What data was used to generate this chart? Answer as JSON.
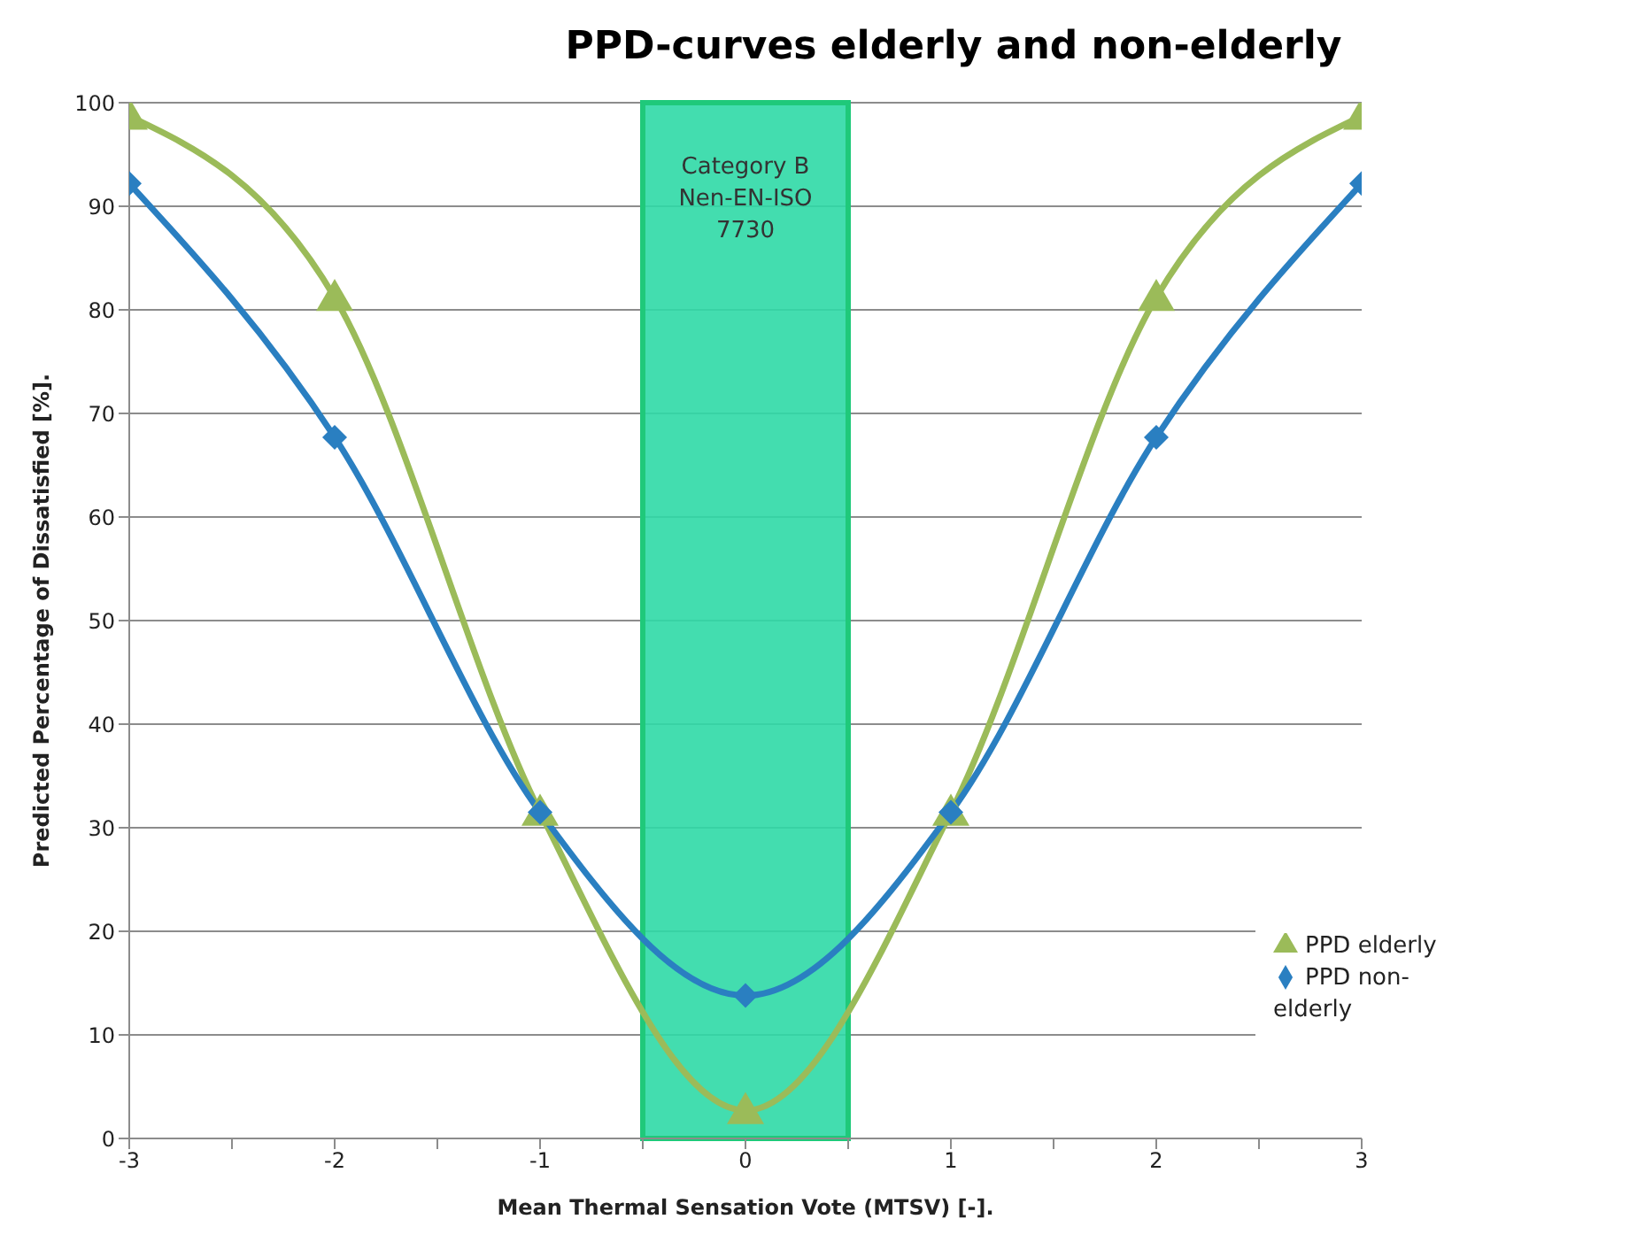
{
  "chart_data": {
    "type": "line",
    "title": "PPD-curves elderly and non-elderly",
    "xlabel": "Mean Thermal Sensation Vote (MTSV)  [-].",
    "ylabel": "Predicted Percentage of Dissatisfied  [%].",
    "x": [
      -3,
      -2,
      -1,
      0,
      1,
      2,
      3
    ],
    "series": [
      {
        "name": "PPD elderly",
        "color": "#9bbb59",
        "marker": "triangle",
        "values": [
          98.7,
          81.2,
          31.5,
          2.7,
          31.5,
          81.2,
          98.7
        ]
      },
      {
        "name": "PPD non-elderly",
        "color": "#2a7fc1",
        "marker": "diamond",
        "values": [
          92.2,
          67.7,
          31.5,
          13.8,
          31.5,
          67.7,
          92.2
        ]
      }
    ],
    "xlim": [
      -3,
      3
    ],
    "xticks": [
      -3,
      {
        "value": -2.5,
        "label": null
      },
      -2,
      {
        "value": -1.5,
        "label": null
      },
      -1,
      {
        "value": -0.5,
        "label": null
      },
      0,
      {
        "value": 0.5,
        "label": null
      },
      1,
      {
        "value": 1.5,
        "label": null
      },
      2,
      {
        "value": 2.5,
        "label": null
      },
      3
    ],
    "ylim": [
      0,
      100
    ],
    "yticks": [
      0,
      10,
      20,
      30,
      40,
      50,
      60,
      70,
      80,
      90,
      100
    ],
    "bands": [
      {
        "axis": "x",
        "from": -0.5,
        "to": 0.5,
        "label": "Category B\nNen-EN-ISO\n7730",
        "color": "#2fd9a6"
      }
    ],
    "grid": "y",
    "legend": "bottom right",
    "line_style": "solid"
  }
}
